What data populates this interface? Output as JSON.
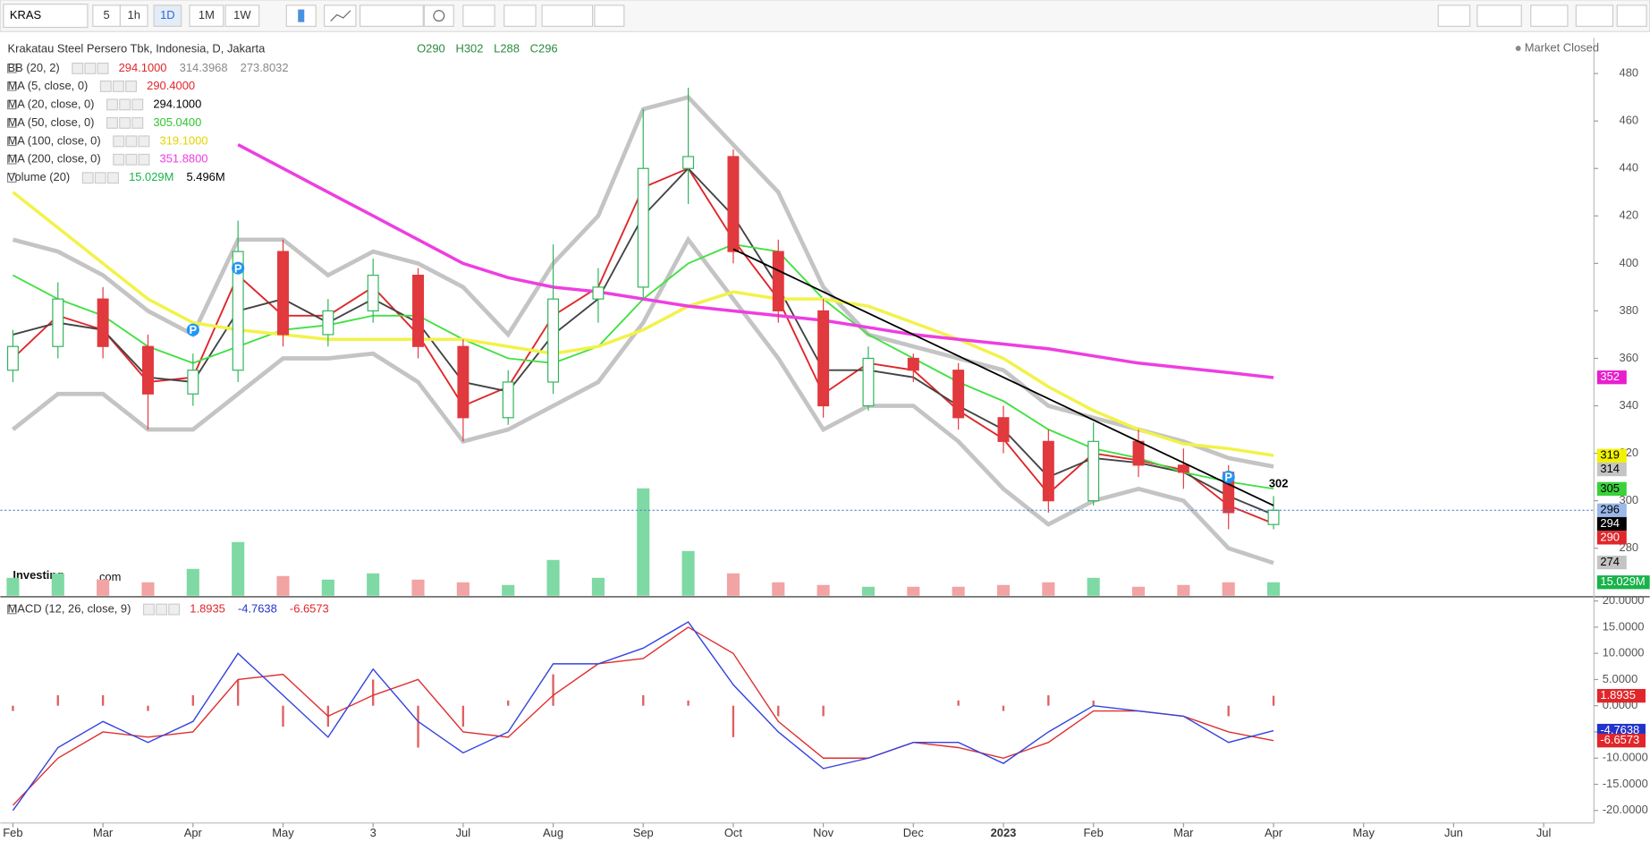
{
  "toolbar": {
    "symbol": "KRAS",
    "intervals": [
      "5",
      "1h",
      "1D",
      "1M",
      "1W"
    ]
  },
  "header": {
    "title": "Krakatau Steel Persero Tbk, Indonesia, D, Jakarta",
    "ohlc": [
      "O290",
      "H302",
      "L288",
      "C296"
    ],
    "status": "Market Closed"
  },
  "logo": {
    "name": "Investing",
    "suffix": ".com"
  },
  "chart_data": [
    {
      "type": "candlestick",
      "categories": [
        "Feb",
        null,
        "Mar",
        null,
        "Apr",
        null,
        "May",
        null,
        "3",
        null,
        "Jul",
        null,
        "Aug",
        null,
        "Sep",
        null,
        "Oct",
        null,
        "Nov",
        null,
        "Dec",
        null,
        "2023",
        null,
        "Feb",
        null,
        "Mar",
        null,
        "Apr",
        null,
        "May",
        null,
        "Jun",
        null,
        "Jul",
        null
      ],
      "open": [
        355,
        365,
        385,
        365,
        345,
        355,
        405,
        370,
        380,
        395,
        365,
        335,
        350,
        385,
        390,
        440,
        445,
        405,
        380,
        340,
        360,
        355,
        335,
        325,
        300,
        325,
        315,
        312,
        290,
        null,
        null,
        null,
        null,
        null,
        null,
        null
      ],
      "high": [
        372,
        392,
        390,
        370,
        362,
        418,
        410,
        385,
        402,
        398,
        368,
        355,
        408,
        398,
        465,
        474,
        448,
        410,
        385,
        365,
        362,
        358,
        340,
        330,
        333,
        330,
        322,
        315,
        302,
        null,
        null,
        null,
        null,
        null,
        null,
        null
      ],
      "low": [
        350,
        360,
        360,
        330,
        340,
        350,
        365,
        365,
        375,
        360,
        325,
        332,
        345,
        375,
        385,
        425,
        400,
        375,
        335,
        338,
        350,
        330,
        320,
        295,
        298,
        310,
        305,
        288,
        288,
        null,
        null,
        null,
        null,
        null,
        null,
        null
      ],
      "close": [
        365,
        385,
        365,
        345,
        355,
        405,
        370,
        380,
        395,
        365,
        335,
        350,
        385,
        390,
        440,
        445,
        405,
        380,
        340,
        360,
        355,
        335,
        325,
        300,
        325,
        315,
        312,
        295,
        296,
        null,
        null,
        null,
        null,
        null,
        null,
        null
      ],
      "up_color": "#2fb35a",
      "down_color": "#e0393e",
      "ylim": [
        260,
        495
      ],
      "yticks": [
        280,
        300,
        320,
        340,
        360,
        380,
        400,
        420,
        440,
        460,
        480
      ],
      "grid": false,
      "bollinger": {
        "name": "BB (20, 2)",
        "color": "#c4c4c4",
        "upper": [
          410,
          405,
          395,
          380,
          370,
          410,
          410,
          395,
          405,
          400,
          390,
          370,
          400,
          420,
          465,
          470,
          450,
          430,
          390,
          370,
          365,
          360,
          355,
          340,
          335,
          330,
          325,
          318,
          314.4,
          null,
          null,
          null,
          null,
          null,
          null,
          null
        ],
        "lower": [
          330,
          345,
          345,
          330,
          330,
          345,
          360,
          360,
          362,
          350,
          325,
          330,
          340,
          350,
          375,
          410,
          385,
          360,
          330,
          340,
          340,
          325,
          305,
          290,
          300,
          305,
          300,
          280,
          273.8,
          null,
          null,
          null,
          null,
          null,
          null,
          null
        ],
        "legend_values": [
          "294.1000",
          "314.3968",
          "273.8032"
        ],
        "legend_colors": [
          "#e0262a",
          "#888888",
          "#888888"
        ]
      },
      "series": [
        {
          "name": "MA (5, close, 0)",
          "color": "#e0262a",
          "legend_color": "#e0262a",
          "legend_values": [
            "290.4000"
          ],
          "values": [
            360,
            378,
            372,
            350,
            352,
            395,
            378,
            378,
            390,
            370,
            340,
            348,
            378,
            390,
            432,
            440,
            410,
            385,
            345,
            358,
            355,
            338,
            326,
            303,
            320,
            317,
            313,
            298,
            290.4,
            null,
            null,
            null,
            null,
            null,
            null,
            null
          ]
        },
        {
          "name": "MA (20, close, 0)",
          "color": "#444444",
          "legend_color": "#000000",
          "legend_values": [
            "294.1000"
          ],
          "values": [
            370,
            375,
            372,
            352,
            350,
            380,
            385,
            375,
            385,
            375,
            350,
            346,
            370,
            385,
            420,
            440,
            420,
            390,
            355,
            355,
            352,
            340,
            330,
            310,
            318,
            316,
            312,
            302,
            294.1,
            null,
            null,
            null,
            null,
            null,
            null,
            null
          ]
        },
        {
          "name": "MA (50, close, 0)",
          "color": "#43e043",
          "legend_color": "#2fc62f",
          "legend_values": [
            "305.0400"
          ],
          "values": [
            395,
            385,
            378,
            365,
            358,
            365,
            372,
            374,
            378,
            378,
            368,
            360,
            358,
            365,
            385,
            400,
            408,
            405,
            385,
            370,
            360,
            350,
            342,
            330,
            322,
            318,
            312,
            308,
            305.04,
            null,
            null,
            null,
            null,
            null,
            null,
            null
          ]
        },
        {
          "name": "MA (100, close, 0)",
          "color": "#f2f24a",
          "legend_color": "#e6d300",
          "legend_values": [
            "319.1000"
          ],
          "values": [
            430,
            415,
            400,
            385,
            375,
            372,
            370,
            368,
            368,
            368,
            368,
            365,
            362,
            365,
            372,
            382,
            388,
            385,
            385,
            382,
            375,
            368,
            360,
            348,
            338,
            330,
            324,
            322,
            319.1,
            null,
            null,
            null,
            null,
            null,
            null,
            null
          ]
        },
        {
          "name": "MA (200, close, 0)",
          "color": "#ee3ee0",
          "legend_color": "#ee3ee0",
          "legend_values": [
            "351.8800"
          ],
          "values": [
            null,
            null,
            null,
            null,
            null,
            450,
            440,
            430,
            420,
            410,
            400,
            394,
            390,
            388,
            385,
            382,
            380,
            378,
            376,
            373,
            370,
            368,
            366,
            364,
            361,
            358,
            356,
            354,
            351.88,
            null,
            null,
            null,
            null,
            null,
            null,
            null
          ]
        }
      ],
      "volume": {
        "name": "Volume (20)",
        "ylim": [
          0,
          200
        ],
        "legend_values": [
          "15.029M",
          "5.496M"
        ],
        "legend_colors": [
          "#19b34a",
          "#000000"
        ],
        "values": [
          20,
          25,
          18,
          15,
          30,
          60,
          22,
          18,
          25,
          18,
          15,
          12,
          40,
          20,
          120,
          50,
          25,
          15,
          12,
          10,
          10,
          10,
          12,
          15,
          20,
          10,
          12,
          15,
          15.029,
          null,
          null,
          null,
          null,
          null,
          null,
          null
        ]
      },
      "trendline": {
        "color": "#000000",
        "values": [
          null,
          null,
          null,
          null,
          null,
          null,
          null,
          null,
          null,
          null,
          null,
          null,
          null,
          null,
          null,
          null,
          406,
          397,
          388,
          379,
          370,
          361,
          352,
          343,
          334,
          325,
          316,
          307,
          298,
          null,
          null,
          null,
          null,
          null,
          null,
          null
        ]
      },
      "pivots": {
        "label": "P",
        "color": "#2196f3",
        "values": [
          null,
          null,
          null,
          null,
          372,
          398,
          null,
          null,
          null,
          null,
          null,
          null,
          null,
          null,
          null,
          null,
          null,
          null,
          null,
          null,
          null,
          null,
          null,
          null,
          null,
          null,
          null,
          310,
          null,
          null,
          null,
          null,
          null,
          null,
          null,
          null
        ]
      },
      "annotation": "302",
      "price_tags": [
        {
          "value": 352,
          "color": "#e91ecf",
          "text_color": "#ffffff"
        },
        {
          "value": 319,
          "color": "#f2f200",
          "text_color": "#000000"
        },
        {
          "value": 314,
          "color": "#c4c4c4",
          "text_color": "#000000"
        },
        {
          "value": 305,
          "color": "#3ad13a",
          "text_color": "#000000"
        },
        {
          "value": 296,
          "color": "#9ab8ea",
          "text_color": "#000000"
        },
        {
          "value": 294,
          "color": "#000000",
          "text_color": "#ffffff"
        },
        {
          "value": 290,
          "color": "#e0262a",
          "text_color": "#ffffff"
        },
        {
          "value": 274,
          "color": "#c4c4c4",
          "text_color": "#000000"
        }
      ]
    },
    {
      "type": "macd",
      "name": "MACD (12, 26, close, 9)",
      "ylim": [
        -22.4,
        20.6
      ],
      "yticks": [
        {
          "value": 20,
          "label": "20.0000"
        },
        {
          "value": 15,
          "label": "15.0000"
        },
        {
          "value": 10,
          "label": "10.0000"
        },
        {
          "value": 5,
          "label": "5.0000"
        },
        {
          "value": 0,
          "label": "0.0000"
        },
        {
          "value": -5,
          "label": "-5.0000"
        },
        {
          "value": -10,
          "label": "-10.0000"
        },
        {
          "value": -15,
          "label": "-15.0000"
        },
        {
          "value": -20,
          "label": "-20.0000"
        }
      ],
      "macd": [
        -20,
        -8,
        -3,
        -7,
        -3,
        10,
        2,
        -6,
        7,
        -3,
        -9,
        -5,
        8,
        8,
        11,
        16,
        4,
        -5,
        -12,
        -10,
        -7,
        -7,
        -11,
        -5,
        0,
        -1,
        -2,
        -7,
        -4.7638,
        null,
        null,
        null,
        null,
        null,
        null,
        null
      ],
      "signal": [
        -19,
        -10,
        -5,
        -6,
        -5,
        5,
        6,
        -2,
        2,
        5,
        -5,
        -6,
        2,
        8,
        9,
        15,
        10,
        -3,
        -10,
        -10,
        -7,
        -8,
        -10,
        -7,
        -1,
        -1,
        -2,
        -5,
        -6.6573,
        null,
        null,
        null,
        null,
        null,
        null,
        null
      ],
      "histogram": [
        -1,
        2,
        2,
        -1,
        2,
        5,
        -4,
        -4,
        5,
        -8,
        -4,
        1,
        6,
        0,
        2,
        1,
        -6,
        -2,
        -2,
        0,
        0,
        1,
        -1,
        2,
        1,
        0,
        0,
        -2,
        1.8935,
        null,
        null,
        null,
        null,
        null,
        null,
        null
      ],
      "macd_color": "#3344dd",
      "signal_color": "#e03030",
      "histogram_color": "#e06060",
      "tags": [
        {
          "value": 1.8935,
          "color": "#e0262a"
        },
        {
          "value": -4.7638,
          "color": "#2233cc"
        },
        {
          "value": -6.6573,
          "color": "#e0262a"
        }
      ]
    }
  ]
}
